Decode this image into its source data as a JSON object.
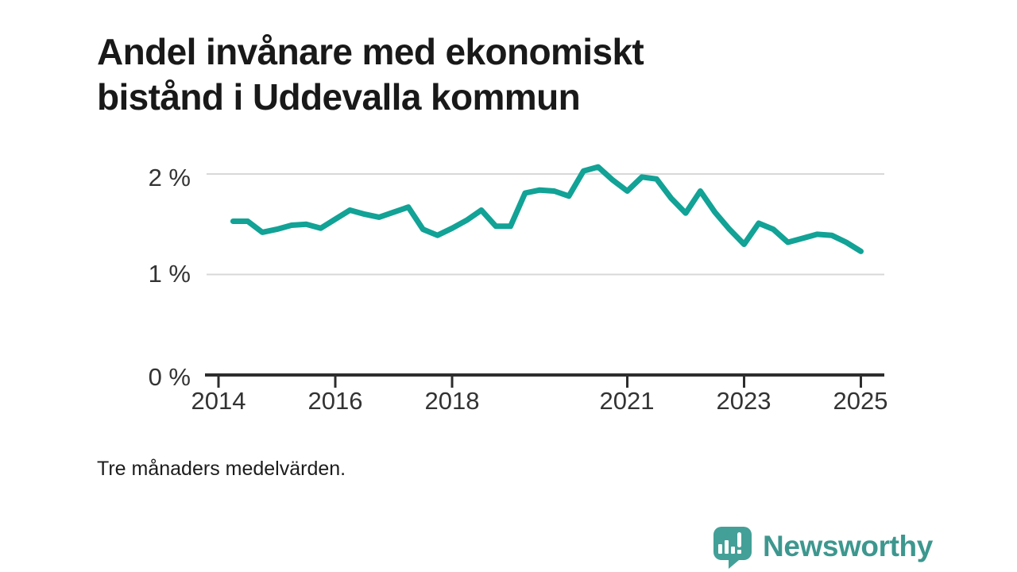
{
  "title_lines": [
    "Andel invånare med ekonomiskt",
    "bistånd i Uddevalla kommun"
  ],
  "title_full": "Andel invånare med ekonomiskt bistånd i Uddevalla kommun",
  "footnote": "Tre månaders medelvärden.",
  "branding": {
    "wordmark": "Newsworthy",
    "logo_icon": "speech-bubble-bar-chart-icon",
    "logo_color": "#43a098",
    "wordmark_color": "#3d978f"
  },
  "chart_data": {
    "type": "line",
    "title": "Andel invånare med ekonomiskt bistånd i Uddevalla kommun",
    "xlabel": "",
    "ylabel": "",
    "grid": "horizontal",
    "gridline_values": [
      1,
      2
    ],
    "grid_color": "#d8d8d8",
    "axis_color": "#2d2d2d",
    "tick_label_color": "#333333",
    "xlim": [
      2013.8,
      2025.45
    ],
    "ylim": [
      0,
      2.35
    ],
    "x_ticks": [
      2014,
      2016,
      2018,
      2021,
      2023,
      2025
    ],
    "x_tick_labels": [
      "2014",
      "2016",
      "2018",
      "2021",
      "2023",
      "2025"
    ],
    "y_ticks": [
      0,
      1,
      2
    ],
    "y_tick_labels": [
      "0 %",
      "1 %",
      "2 %"
    ],
    "series": [
      {
        "name": "Andel invånare med ekonomiskt bistånd",
        "color": "#12a296",
        "x": [
          2014.25,
          2014.5,
          2014.75,
          2015.0,
          2015.25,
          2015.5,
          2015.75,
          2016.0,
          2016.25,
          2016.5,
          2016.75,
          2017.0,
          2017.25,
          2017.5,
          2017.75,
          2018.0,
          2018.25,
          2018.5,
          2018.75,
          2019.0,
          2019.25,
          2019.5,
          2019.75,
          2020.0,
          2020.25,
          2020.5,
          2020.75,
          2021.0,
          2021.25,
          2021.5,
          2021.75,
          2022.0,
          2022.25,
          2022.5,
          2022.75,
          2023.0,
          2023.25,
          2023.5,
          2023.75,
          2024.0,
          2024.25,
          2024.5,
          2024.75,
          2025.0
        ],
        "values": [
          1.53,
          1.53,
          1.42,
          1.45,
          1.49,
          1.5,
          1.46,
          1.55,
          1.64,
          1.6,
          1.57,
          1.62,
          1.67,
          1.45,
          1.39,
          1.46,
          1.54,
          1.64,
          1.48,
          1.48,
          1.81,
          1.84,
          1.83,
          1.78,
          2.03,
          2.07,
          1.94,
          1.83,
          1.97,
          1.95,
          1.76,
          1.61,
          1.83,
          1.62,
          1.45,
          1.3,
          1.51,
          1.45,
          1.32,
          1.36,
          1.4,
          1.39,
          1.32,
          1.23
        ]
      }
    ]
  }
}
